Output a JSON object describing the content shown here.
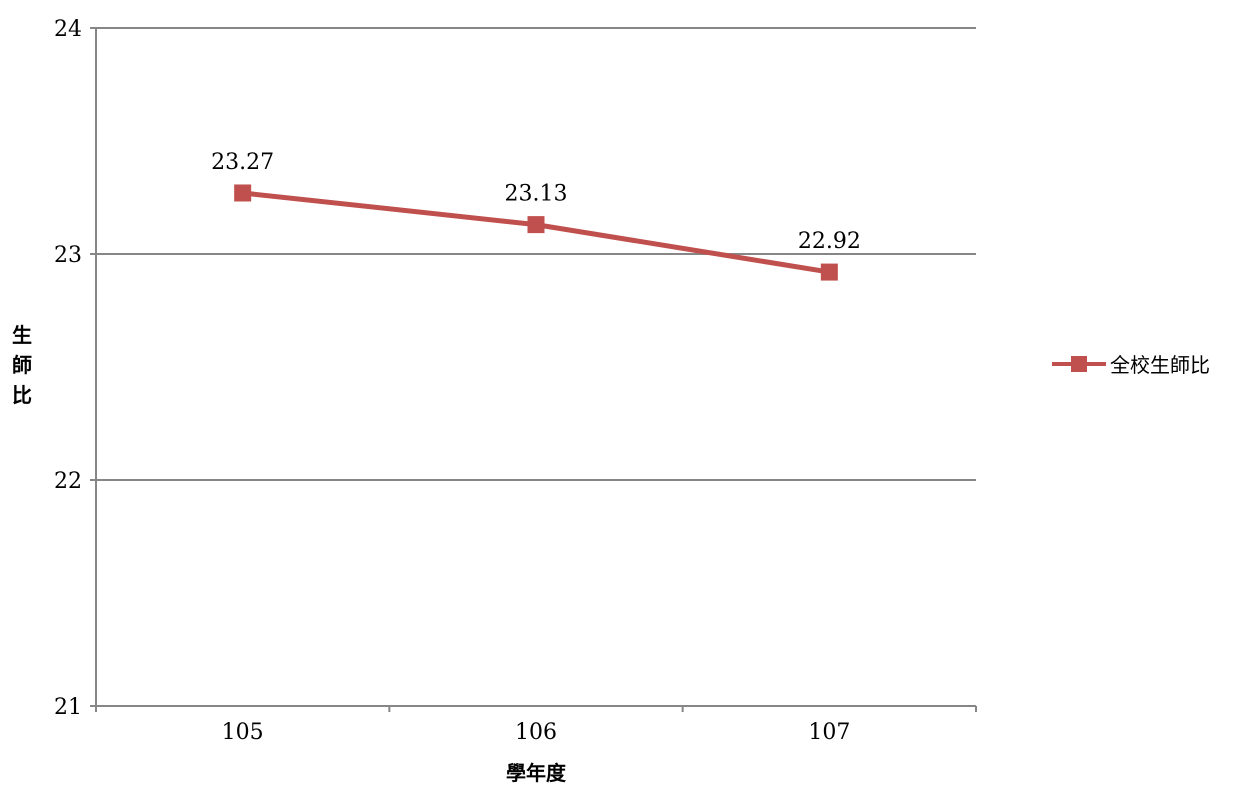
{
  "chart_data": {
    "type": "line",
    "title": "",
    "xlabel": "學年度",
    "ylabel": "生師比",
    "categories": [
      "105",
      "106",
      "107"
    ],
    "series": [
      {
        "name": "全校生師比",
        "values": [
          23.27,
          23.13,
          22.92
        ],
        "data_labels": [
          "23.27",
          "23.13",
          "22.92"
        ],
        "color": "#c0504d",
        "marker": "square"
      }
    ],
    "ylim": [
      21,
      24
    ],
    "yticks": [
      21,
      22,
      23,
      24
    ],
    "ytick_labels": [
      "21",
      "22",
      "23",
      "24"
    ],
    "grid": true,
    "legend_position": "right",
    "gridline_color": "#868686"
  }
}
